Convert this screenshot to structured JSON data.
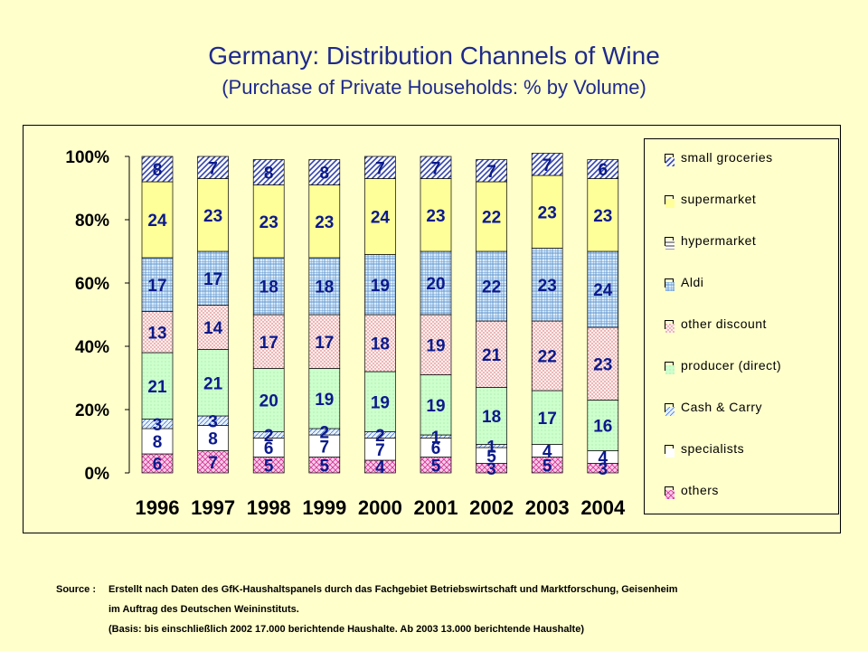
{
  "title": "Germany: Distribution Channels of Wine",
  "subtitle": "(Purchase of Private Households: % by Volume)",
  "source": {
    "label": "Source :",
    "line1": "Erstellt nach Daten des GfK-Haushaltspanels  durch das Fachgebiet Betriebswirtschaft  und Marktforschung,  Geisenheim",
    "line2": "im Auftrag des Deutschen Weininstituts.",
    "line3": "(Basis: bis einschließlich 2002 17.000 berichtende Haushalte. Ab 2003 13.000 berichtende Haushalte)"
  },
  "chart_data": {
    "type": "bar",
    "stacked": "percent",
    "categories": [
      "1996",
      "1997",
      "1998",
      "1999",
      "2000",
      "2001",
      "2002",
      "2003",
      "2004"
    ],
    "ylim": [
      0,
      100
    ],
    "yticks": [
      "0%",
      "20%",
      "40%",
      "60%",
      "80%",
      "100%"
    ],
    "legend_position": "right",
    "series": [
      {
        "name": "others",
        "values": [
          6,
          7,
          5,
          5,
          4,
          5,
          3,
          5,
          3
        ],
        "color": "#FF99CC"
      },
      {
        "name": "specialists",
        "values": [
          8,
          8,
          6,
          7,
          7,
          6,
          5,
          4,
          4
        ],
        "color": "#FFFFFF"
      },
      {
        "name": "Cash & Carry",
        "values": [
          3,
          3,
          2,
          2,
          2,
          1,
          1,
          0,
          0
        ],
        "color": "#99CCFF"
      },
      {
        "name": "producer (direct)",
        "values": [
          21,
          21,
          20,
          19,
          19,
          19,
          18,
          17,
          16
        ],
        "color": "#CCFFCC"
      },
      {
        "name": "other discount",
        "values": [
          13,
          14,
          17,
          17,
          18,
          19,
          21,
          22,
          23
        ],
        "color": "#FFCCCC"
      },
      {
        "name": "Aldi",
        "values": [
          17,
          17,
          18,
          18,
          19,
          20,
          22,
          23,
          24
        ],
        "color": "#99CCFF"
      },
      {
        "name": "hypermarket",
        "values": [
          0,
          0,
          0,
          0,
          0,
          0,
          0,
          0,
          0
        ],
        "color": "#FFFFFF"
      },
      {
        "name": "supermarket",
        "values": [
          24,
          23,
          23,
          23,
          24,
          23,
          22,
          23,
          23
        ],
        "color": "#FFFF99"
      },
      {
        "name": "small groceries",
        "values": [
          8,
          7,
          8,
          8,
          7,
          7,
          7,
          7,
          6
        ],
        "color": "#3366CC"
      }
    ]
  }
}
